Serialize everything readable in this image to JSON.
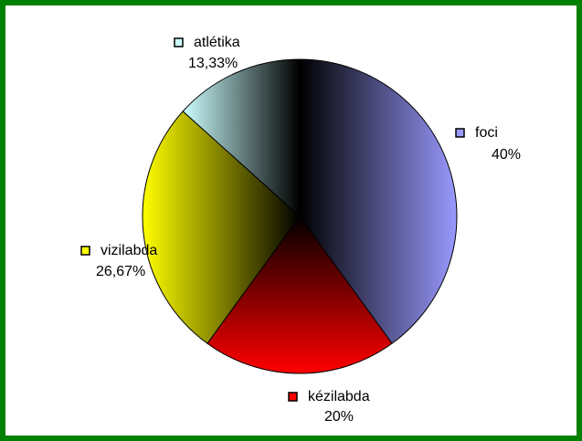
{
  "chart_data": {
    "type": "pie",
    "categories": [
      "foci",
      "kézilabda",
      "vizilabda",
      "atlétika"
    ],
    "values": [
      40,
      20,
      26.67,
      13.33
    ],
    "value_labels": [
      "40%",
      "20%",
      "26,67%",
      "13,33%"
    ],
    "colors": [
      "#9999ff",
      "#ff0000",
      "#ffff00",
      "#ccffff"
    ]
  }
}
